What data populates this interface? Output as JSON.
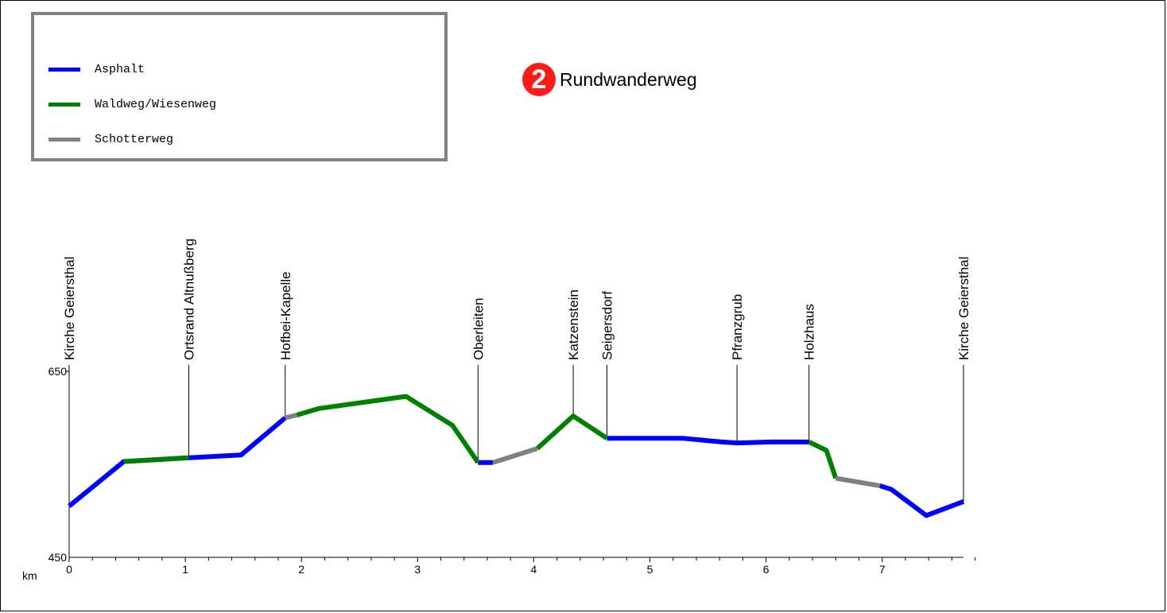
{
  "legend": {
    "items": [
      {
        "label": "Asphalt",
        "color": "#0000ff"
      },
      {
        "label": "Waldweg/Wiesenweg",
        "color": "#008000"
      },
      {
        "label": "Schotterweg",
        "color": "#808080"
      }
    ]
  },
  "header": {
    "badge_number": "2",
    "title": "Rundwanderweg",
    "badge_color": "#ff1a1a"
  },
  "chart_data": {
    "type": "line",
    "xlabel": "km",
    "ylabel": "",
    "xlim": [
      0,
      7.7
    ],
    "ylim": [
      450,
      650
    ],
    "x_ticks": [
      0,
      1,
      2,
      3,
      4,
      5,
      6,
      7
    ],
    "y_ticks": [
      450,
      650
    ],
    "series": [
      {
        "name": "Asphalt",
        "color": "#0000ff",
        "segments": [
          [
            [
              0,
              505
            ],
            [
              0.47,
              553
            ],
            [
              1.03,
              557
            ],
            [
              1.48,
              560
            ],
            [
              1.86,
              600
            ]
          ],
          [
            [
              3.52,
              552
            ],
            [
              3.65,
              552
            ]
          ],
          [
            [
              4.63,
              578
            ],
            [
              5.28,
              578
            ],
            [
              5.62,
              574
            ],
            [
              5.75,
              573
            ],
            [
              6.05,
              574
            ],
            [
              6.37,
              574
            ]
          ],
          [
            [
              6.98,
              527
            ],
            [
              7.08,
              523
            ],
            [
              7.38,
              495
            ],
            [
              7.7,
              510
            ]
          ]
        ]
      },
      {
        "name": "Waldweg/Wiesenweg",
        "color": "#008000",
        "segments": [
          [
            [
              0.47,
              553
            ],
            [
              1.03,
              557
            ]
          ],
          [
            [
              1.96,
              603
            ],
            [
              2.15,
              610
            ],
            [
              2.9,
              623
            ],
            [
              3.3,
              592
            ],
            [
              3.52,
              552
            ]
          ],
          [
            [
              4.03,
              567
            ],
            [
              4.34,
              602
            ],
            [
              4.63,
              578
            ]
          ],
          [
            [
              6.37,
              574
            ],
            [
              6.52,
              565
            ],
            [
              6.6,
              535
            ]
          ]
        ]
      },
      {
        "name": "Schotterweg",
        "color": "#808080",
        "segments": [
          [
            [
              1.86,
              600
            ],
            [
              1.96,
              603
            ]
          ],
          [
            [
              3.65,
              552
            ],
            [
              4.03,
              567
            ]
          ],
          [
            [
              6.6,
              535
            ],
            [
              6.98,
              527
            ]
          ]
        ]
      }
    ],
    "waypoints": [
      {
        "label": "Kirche Geiersthal",
        "km": 0,
        "elevation": 505
      },
      {
        "label": "Ortsrand Altnußberg",
        "km": 1.03,
        "elevation": 557
      },
      {
        "label": "Hofbei-Kapelle",
        "km": 1.86,
        "elevation": 600
      },
      {
        "label": "Oberleiten",
        "km": 3.52,
        "elevation": 552
      },
      {
        "label": "Katzenstein",
        "km": 4.34,
        "elevation": 602
      },
      {
        "label": "Seigersdorf",
        "km": 4.63,
        "elevation": 578
      },
      {
        "label": "Pfranzgrub",
        "km": 5.75,
        "elevation": 573
      },
      {
        "label": "Holzhaus",
        "km": 6.37,
        "elevation": 574
      },
      {
        "label": "Kirche Geiersthal",
        "km": 7.7,
        "elevation": 510
      }
    ]
  }
}
